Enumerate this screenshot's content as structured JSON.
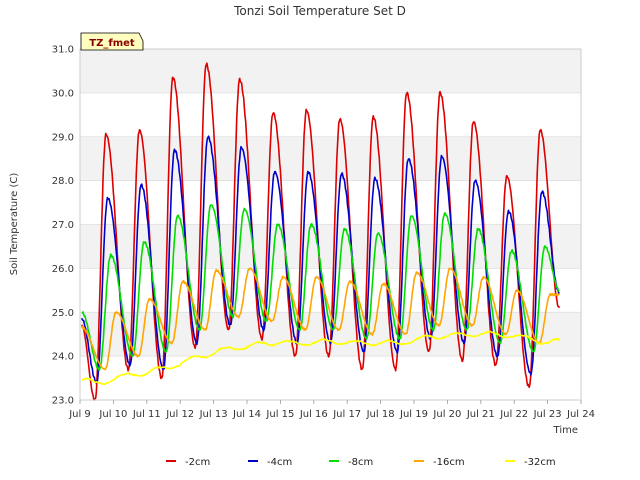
{
  "chart_data": {
    "type": "line",
    "title": "Tonzi Soil Temperature Set D",
    "xlabel": "Time",
    "ylabel": "Soil Temperature (C)",
    "badge": "TZ_fmet",
    "xlim": [
      9,
      24
    ],
    "ylim": [
      23.0,
      31.0
    ],
    "x_ticks": [
      9,
      10,
      11,
      12,
      13,
      14,
      15,
      16,
      17,
      18,
      19,
      20,
      21,
      22,
      23,
      24
    ],
    "x_tick_labels": [
      "Jul 9",
      "Jul 10",
      "Jul 11",
      "Jul 12",
      "Jul 13",
      "Jul 14",
      "Jul 15",
      "Jul 16",
      "Jul 17",
      "Jul 18",
      "Jul 19",
      "Jul 20",
      "Jul 21",
      "Jul 22",
      "Jul 23",
      "Jul 24"
    ],
    "y_ticks": [
      23.0,
      24.0,
      25.0,
      26.0,
      27.0,
      28.0,
      29.0,
      30.0,
      31.0
    ],
    "y_tick_labels": [
      "23.0",
      "24.0",
      "25.0",
      "26.0",
      "27.0",
      "28.0",
      "29.0",
      "30.0",
      "31.0"
    ],
    "grid": true,
    "legend_position": "bottom",
    "series": [
      {
        "name": "-2cm",
        "color": "#dd0000",
        "min_times": [
          9.45,
          10.45,
          11.45,
          12.45,
          13.45,
          14.45,
          15.45,
          16.45,
          17.45,
          18.45,
          19.45,
          20.45,
          21.45,
          22.45
        ],
        "mins": [
          23.0,
          23.7,
          23.5,
          24.2,
          24.6,
          24.4,
          24.0,
          24.0,
          23.7,
          23.7,
          24.1,
          23.9,
          23.8,
          23.3
        ],
        "max_times": [
          9.78,
          10.78,
          11.78,
          12.78,
          13.78,
          14.78,
          15.78,
          16.78,
          17.78,
          18.78,
          19.78,
          20.78,
          21.78,
          22.78
        ],
        "maxs": [
          29.05,
          29.15,
          30.35,
          30.65,
          30.3,
          29.55,
          29.6,
          29.4,
          29.45,
          30.0,
          30.0,
          29.35,
          28.1,
          29.15
        ],
        "start": [
          9.05,
          24.7
        ],
        "end": [
          23.35,
          25.1
        ]
      },
      {
        "name": "-4cm",
        "color": "#0000cc",
        "min_times": [
          9.5,
          10.5,
          11.5,
          12.5,
          13.5,
          14.5,
          15.5,
          16.5,
          17.5,
          18.5,
          19.5,
          20.5,
          21.5,
          22.5
        ],
        "mins": [
          23.4,
          23.8,
          23.7,
          24.3,
          24.7,
          24.6,
          24.3,
          24.3,
          24.1,
          24.1,
          24.4,
          24.3,
          24.0,
          23.6
        ],
        "max_times": [
          9.83,
          10.83,
          11.83,
          12.83,
          13.83,
          14.83,
          15.83,
          16.83,
          17.83,
          18.83,
          19.83,
          20.83,
          21.83,
          22.83
        ],
        "maxs": [
          27.6,
          27.9,
          28.7,
          29.0,
          28.75,
          28.2,
          28.2,
          28.15,
          28.05,
          28.5,
          28.55,
          28.0,
          27.3,
          27.75
        ],
        "start": [
          9.05,
          24.85
        ],
        "end": [
          23.35,
          25.45
        ]
      },
      {
        "name": "-8cm",
        "color": "#00dd00",
        "min_times": [
          9.58,
          10.58,
          11.58,
          12.58,
          13.58,
          14.58,
          15.58,
          16.58,
          17.58,
          18.58,
          19.58,
          20.58,
          21.58,
          22.58
        ],
        "mins": [
          23.7,
          24.0,
          24.1,
          24.6,
          24.9,
          24.8,
          24.6,
          24.6,
          24.4,
          24.4,
          24.6,
          24.6,
          24.3,
          24.1
        ],
        "max_times": [
          9.92,
          10.92,
          11.92,
          12.92,
          13.92,
          14.92,
          15.92,
          16.92,
          17.92,
          18.92,
          19.92,
          20.92,
          21.92,
          22.92
        ],
        "maxs": [
          26.3,
          26.6,
          27.2,
          27.45,
          27.35,
          27.0,
          27.0,
          26.9,
          26.8,
          27.2,
          27.25,
          26.9,
          26.4,
          26.5
        ],
        "start": [
          9.05,
          25.0
        ],
        "end": [
          23.35,
          25.5
        ]
      },
      {
        "name": "-16cm",
        "color": "#ffa500",
        "min_times": [
          9.75,
          10.75,
          11.75,
          12.75,
          13.75,
          14.75,
          15.75,
          16.75,
          17.75,
          18.75,
          19.75,
          20.75,
          21.75,
          22.75
        ],
        "mins": [
          23.7,
          24.0,
          24.3,
          24.6,
          24.9,
          24.8,
          24.6,
          24.6,
          24.5,
          24.5,
          24.7,
          24.7,
          24.5,
          24.3
        ],
        "max_times": [
          10.08,
          11.08,
          12.08,
          13.08,
          14.08,
          15.08,
          16.08,
          17.08,
          18.08,
          19.08,
          20.08,
          21.08,
          22.08,
          23.08
        ],
        "maxs": [
          25.0,
          25.3,
          25.7,
          25.95,
          26.0,
          25.8,
          25.8,
          25.7,
          25.65,
          25.9,
          26.0,
          25.8,
          25.5,
          25.4
        ],
        "start": [
          9.05,
          24.65
        ],
        "end": [
          23.35,
          25.4
        ]
      },
      {
        "name": "-32cm",
        "color": "#ffff00",
        "points": [
          [
            9.05,
            23.45
          ],
          [
            9.5,
            23.4
          ],
          [
            10.0,
            23.45
          ],
          [
            10.5,
            23.6
          ],
          [
            11.0,
            23.6
          ],
          [
            11.5,
            23.75
          ],
          [
            12.0,
            23.8
          ],
          [
            12.5,
            24.0
          ],
          [
            13.0,
            24.05
          ],
          [
            13.5,
            24.2
          ],
          [
            14.0,
            24.2
          ],
          [
            14.5,
            24.3
          ],
          [
            15.0,
            24.3
          ],
          [
            15.5,
            24.3
          ],
          [
            16.0,
            24.3
          ],
          [
            16.5,
            24.35
          ],
          [
            17.0,
            24.3
          ],
          [
            17.5,
            24.3
          ],
          [
            18.0,
            24.3
          ],
          [
            18.5,
            24.3
          ],
          [
            19.0,
            24.35
          ],
          [
            19.5,
            24.45
          ],
          [
            20.0,
            24.45
          ],
          [
            20.5,
            24.5
          ],
          [
            21.0,
            24.5
          ],
          [
            21.5,
            24.5
          ],
          [
            22.0,
            24.45
          ],
          [
            22.5,
            24.4
          ],
          [
            23.0,
            24.3
          ],
          [
            23.35,
            24.35
          ]
        ]
      }
    ]
  }
}
